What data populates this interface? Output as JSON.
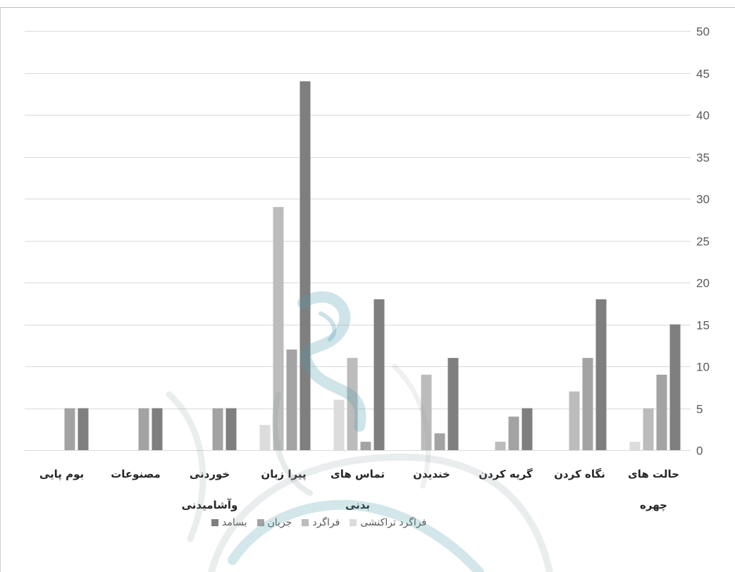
{
  "page": {
    "background": "#ffffff"
  },
  "chart_data": {
    "type": "bar",
    "x_reversed": true,
    "y_axis_side": "right",
    "categories": [
      "حالت های چهره",
      "نگاه کردن",
      "گریه کردن",
      "خندیدن",
      "تماس های بدنی",
      "پیرا زبان",
      "خوردنی وآشامیدنی",
      "مصنوعات",
      "بوم پایی"
    ],
    "series": [
      {
        "name": "بسامد",
        "color": "#7f7f7f",
        "values": [
          15,
          18,
          5,
          11,
          18,
          44,
          5,
          5,
          5
        ]
      },
      {
        "name": "جریان",
        "color": "#a3a3a3",
        "values": [
          9,
          11,
          4,
          2,
          1,
          12,
          5,
          5,
          5
        ]
      },
      {
        "name": "فراگرد",
        "color": "#bcbcbc",
        "values": [
          5,
          7,
          1,
          9,
          11,
          29,
          0,
          0,
          0
        ]
      },
      {
        "name": "فراگرد تراکنشی",
        "color": "#dcdcdc",
        "values": [
          1,
          0,
          0,
          0,
          6,
          3,
          0,
          0,
          0
        ]
      }
    ],
    "ylim": [
      0,
      50
    ],
    "yticks": [
      0,
      5,
      10,
      15,
      20,
      25,
      30,
      35,
      40,
      45,
      50
    ],
    "grid": true,
    "grid_color": "#d9d9d9",
    "label_color": "#595959",
    "legend": "bottom",
    "title": "",
    "xlabel": "",
    "ylabel": ""
  }
}
